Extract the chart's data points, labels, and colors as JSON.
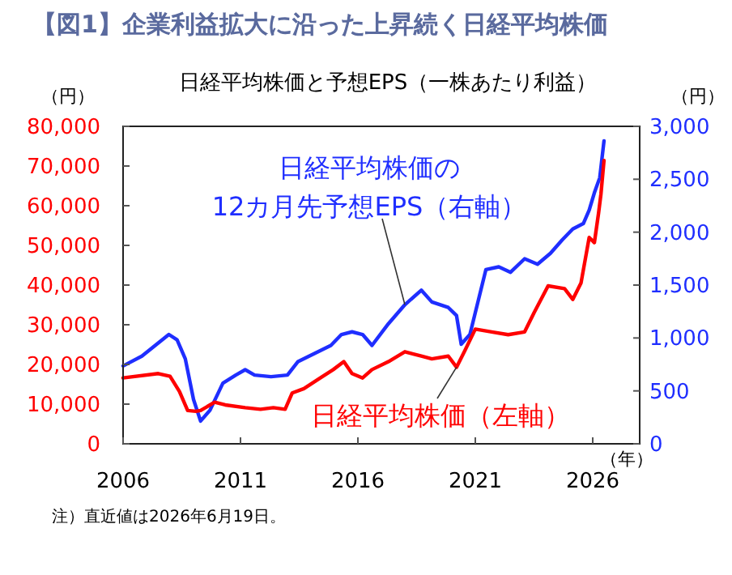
{
  "chart_data": {
    "type": "line",
    "title": "【図1】企業利益拡大に沿った上昇続く日経平均株価",
    "subtitle": "日経平均株価と予想EPS（一株あたり利益）",
    "ylabel": "（円）",
    "y2label": "（円）",
    "xlabel": "（年）",
    "annotations": [
      "注）直近値は2026年6月19日。"
    ],
    "xlim": [
      2006,
      2028
    ],
    "xticks": [
      2006,
      2011,
      2016,
      2021,
      2026
    ],
    "ylim": [
      0,
      80000
    ],
    "yticks": [
      {
        "value": 0,
        "label": "0"
      },
      {
        "value": 10000,
        "label": "10,000"
      },
      {
        "value": 20000,
        "label": "20,000"
      },
      {
        "value": 30000,
        "label": "30,000"
      },
      {
        "value": 40000,
        "label": "40,000"
      },
      {
        "value": 50000,
        "label": "50,000"
      },
      {
        "value": 60000,
        "label": "60,000"
      },
      {
        "value": 70000,
        "label": "70,000"
      },
      {
        "value": 80000,
        "label": "80,000"
      }
    ],
    "y2lim": [
      0,
      3000
    ],
    "y2ticks": [
      {
        "value": 0,
        "label": "0"
      },
      {
        "value": 500,
        "label": "500"
      },
      {
        "value": 1000,
        "label": "1,000"
      },
      {
        "value": 1500,
        "label": "1,500"
      },
      {
        "value": 2000,
        "label": "2,000"
      },
      {
        "value": 2500,
        "label": "2,500"
      },
      {
        "value": 3000,
        "label": "3,000"
      }
    ],
    "grid": false,
    "legend": false,
    "series": [
      {
        "name": "日経平均株価の\n12カ月先予想EPS（右軸）",
        "color": "#1f2eff",
        "axis": "y2",
        "x": [
          2006.0,
          2006.8,
          2007.95,
          2008.3,
          2008.65,
          2009.0,
          2009.3,
          2009.7,
          2010.25,
          2010.8,
          2011.2,
          2011.6,
          2012.3,
          2013.0,
          2013.45,
          2014.15,
          2014.85,
          2015.3,
          2015.75,
          2016.2,
          2016.6,
          2017.3,
          2018.0,
          2018.7,
          2019.15,
          2019.85,
          2020.2,
          2020.4,
          2020.77,
          2021.45,
          2022.0,
          2022.5,
          2023.1,
          2023.65,
          2024.2,
          2024.7,
          2025.15,
          2025.6,
          2025.85,
          2026.07,
          2026.3,
          2026.48
        ],
        "values": [
          736,
          828,
          1033,
          982,
          803,
          419,
          215,
          317,
          573,
          650,
          700,
          650,
          634,
          650,
          777,
          854,
          930,
          1033,
          1058,
          1033,
          930,
          1135,
          1314,
          1452,
          1340,
          1288,
          1212,
          941,
          1033,
          1646,
          1672,
          1621,
          1749,
          1697,
          1800,
          1927,
          2030,
          2081,
          2209,
          2372,
          2515,
          2863
        ]
      },
      {
        "name": "日経平均株価（左軸）",
        "color": "#ff0000",
        "x": [
          2006.0,
          2007.5,
          2008.0,
          2008.4,
          2008.75,
          2009.1,
          2009.3,
          2009.9,
          2010.35,
          2011.2,
          2011.85,
          2012.4,
          2012.9,
          2013.2,
          2013.7,
          2014.4,
          2014.95,
          2015.4,
          2015.75,
          2016.2,
          2016.6,
          2017.3,
          2018.0,
          2018.7,
          2019.15,
          2019.85,
          2020.2,
          2020.55,
          2021.0,
          2021.7,
          2022.4,
          2023.1,
          2023.5,
          2024.1,
          2024.8,
          2025.15,
          2025.5,
          2025.85,
          2026.07,
          2026.25,
          2026.35,
          2026.48
        ],
        "values": [
          16600,
          17700,
          17000,
          13200,
          8400,
          8200,
          8400,
          10500,
          9800,
          9100,
          8700,
          9100,
          8700,
          12800,
          13900,
          16600,
          18700,
          20700,
          17700,
          16600,
          18700,
          20700,
          23200,
          22100,
          21400,
          22100,
          19300,
          23400,
          28900,
          28200,
          27500,
          28200,
          33000,
          39800,
          39100,
          36400,
          40500,
          52000,
          50700,
          58200,
          62900,
          71400
        ]
      }
    ]
  }
}
